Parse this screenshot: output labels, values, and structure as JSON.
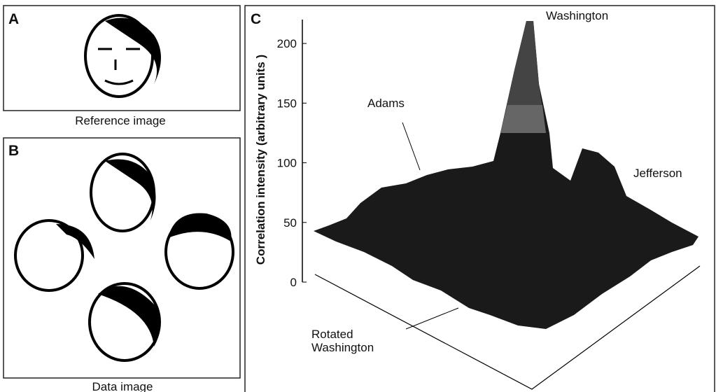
{
  "panels": {
    "a": {
      "label": "A",
      "caption": "Reference image"
    },
    "b": {
      "label": "B",
      "caption": "Data image"
    },
    "c": {
      "label": "C",
      "y_label": "Correlation intensity (arbitrary units )",
      "ylim": [
        0,
        220
      ],
      "yticks": [
        0,
        50,
        100,
        150,
        200
      ],
      "annotations": {
        "washington": "Washington",
        "adams": "Adams",
        "jefferson": "Jefferson",
        "rotated": [
          "Rotated",
          "Washington"
        ]
      }
    }
  }
}
